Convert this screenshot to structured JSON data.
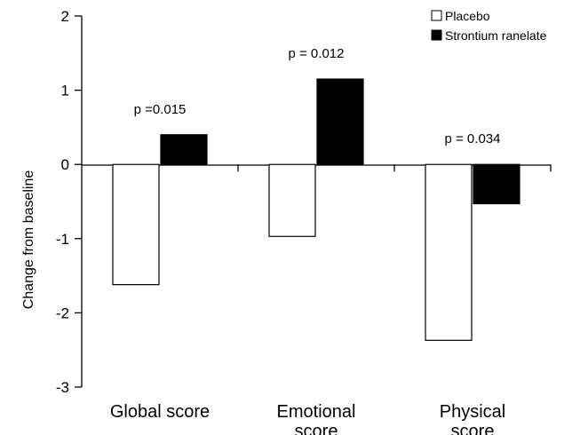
{
  "chart_data": {
    "type": "bar",
    "categories": [
      "Global score",
      "Emotional score",
      "Physical score"
    ],
    "category_lines": [
      [
        "Global score"
      ],
      [
        "Emotional",
        "score"
      ],
      [
        "Physical",
        "score"
      ]
    ],
    "series": [
      {
        "name": "Placebo",
        "values": [
          -1.62,
          -0.97,
          -2.37
        ],
        "color": "#ffffff"
      },
      {
        "name": "Strontium ranelate",
        "values": [
          0.4,
          1.15,
          -0.53
        ],
        "color": "#000000"
      }
    ],
    "annotations": [
      "p =0.015",
      "p = 0.012",
      "p = 0.034"
    ],
    "ylabel": "Change from baseline",
    "xlabel": "",
    "ylim": [
      -3,
      2
    ],
    "yticks": [
      -3,
      -2,
      -1,
      0,
      1,
      2
    ],
    "grid": false,
    "legend_position": "top-right"
  }
}
